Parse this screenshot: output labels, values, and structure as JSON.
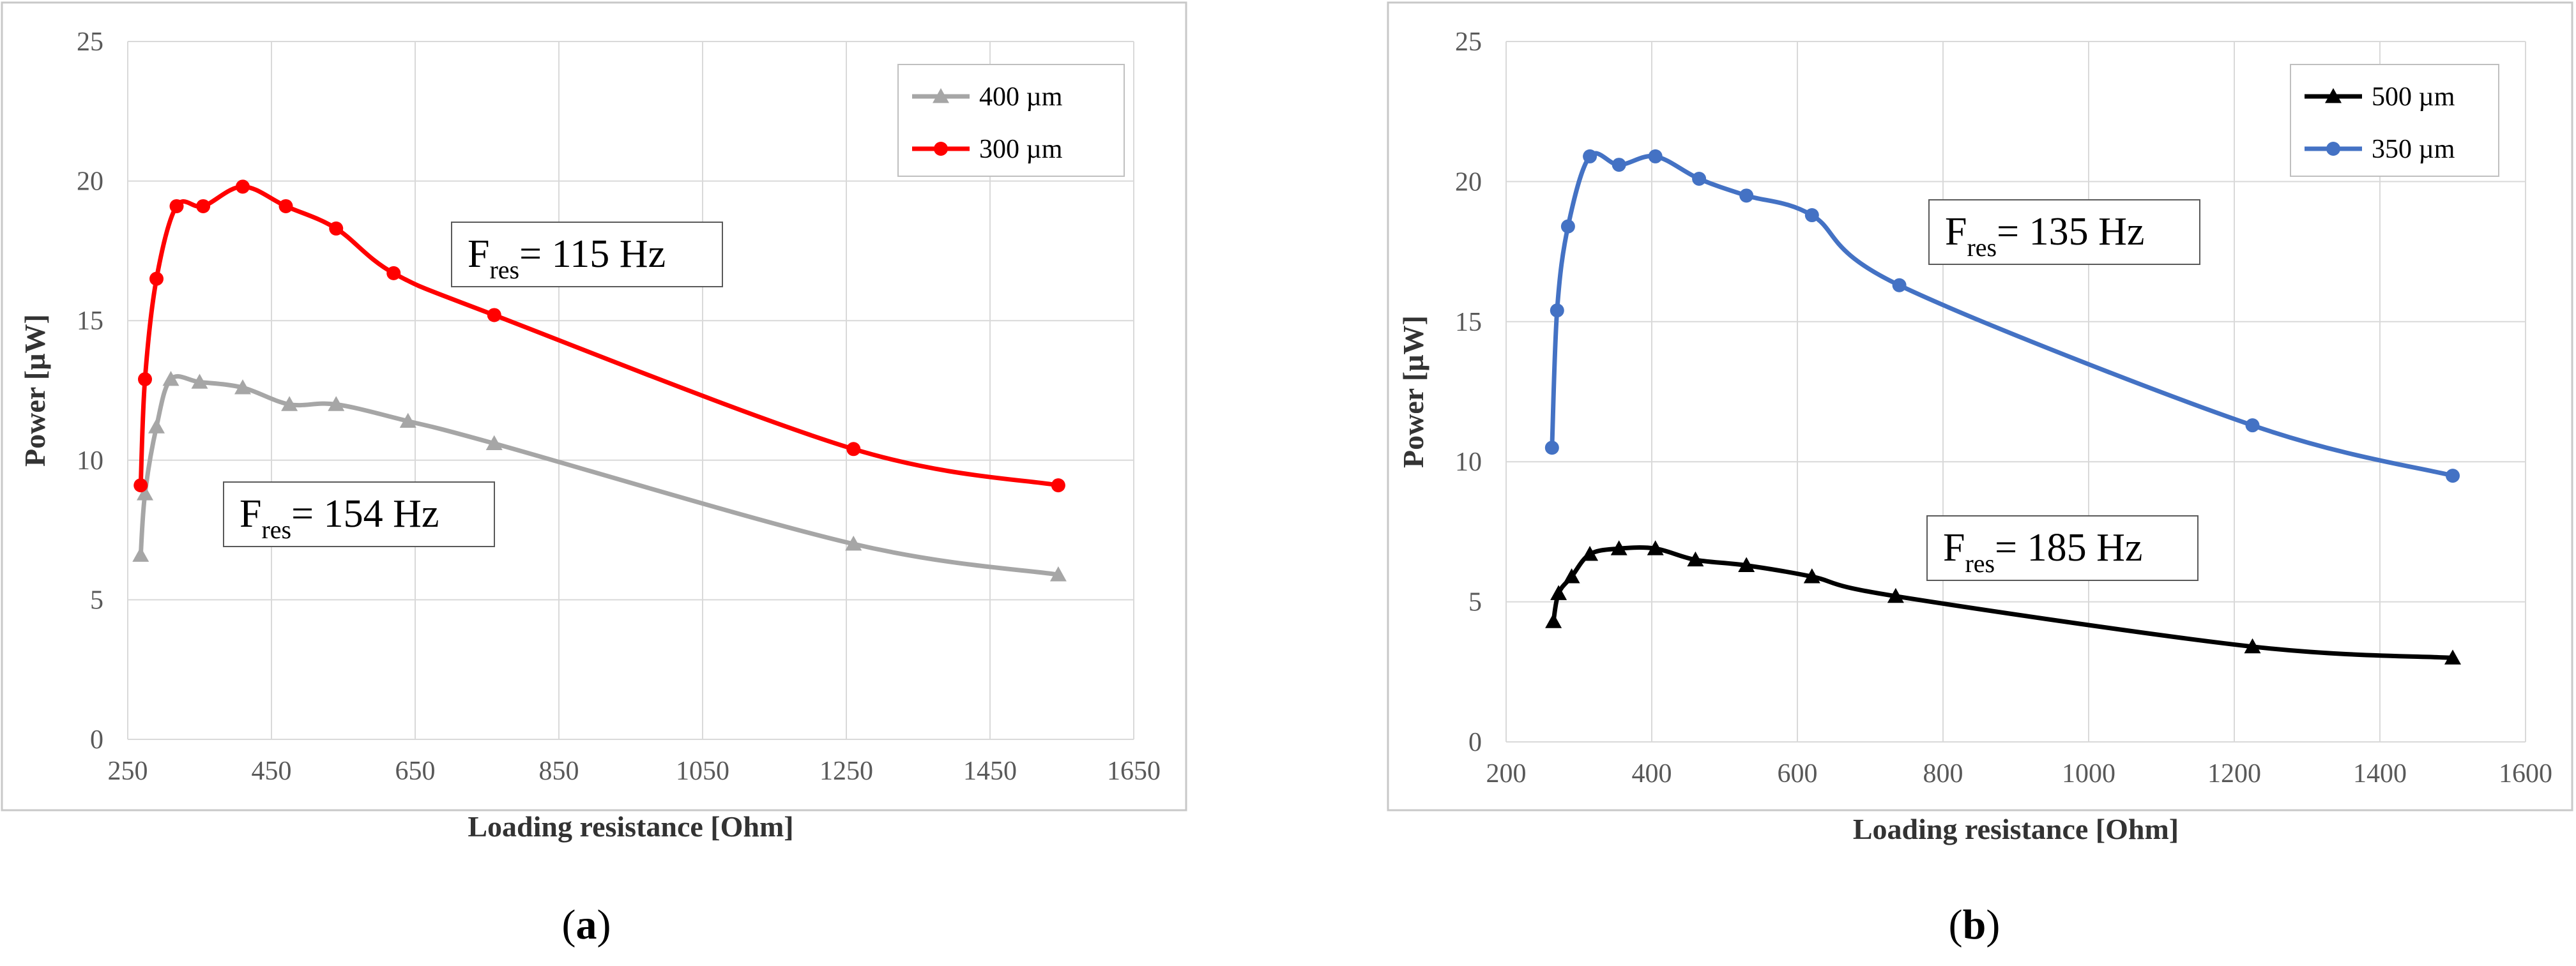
{
  "chart_data": [
    {
      "type": "line",
      "panel_label": [
        "(",
        "a",
        ")"
      ],
      "xlabel": "Loading resistance [Ohm]",
      "ylabel": "Power [µW]",
      "xlim": [
        250,
        1650
      ],
      "ylim": [
        0,
        25
      ],
      "xticks": [
        250,
        450,
        650,
        850,
        1050,
        1250,
        1450,
        1650
      ],
      "yticks": [
        0,
        5,
        10,
        15,
        20,
        25
      ],
      "grid": true,
      "legend_position": "top-right",
      "series": [
        {
          "name": "400 µm",
          "color": "#a6a6a6",
          "marker": "triangle",
          "x": [
            268,
            274,
            290,
            310,
            350,
            410,
            475,
            540,
            640,
            760,
            1260,
            1545
          ],
          "y": [
            6.6,
            8.8,
            11.2,
            12.9,
            12.8,
            12.6,
            12.0,
            12.0,
            11.4,
            10.6,
            7.0,
            5.9
          ]
        },
        {
          "name": "300 µm",
          "color": "#ff0000",
          "marker": "circle",
          "x": [
            268,
            274,
            290,
            318,
            355,
            410,
            470,
            540,
            620,
            760,
            1260,
            1545
          ],
          "y": [
            9.1,
            12.9,
            16.5,
            19.1,
            19.1,
            19.8,
            19.1,
            18.3,
            16.7,
            15.2,
            10.4,
            9.1
          ]
        }
      ],
      "annotations": [
        {
          "main": "F",
          "sub": "res",
          "text": "= 115 Hz",
          "near_series": "300 µm"
        },
        {
          "main": "F",
          "sub": "res",
          "text": "= 154 Hz",
          "near_series": "400 µm"
        }
      ]
    },
    {
      "type": "line",
      "panel_label": [
        "(",
        "b",
        ")"
      ],
      "xlabel": "Loading resistance [Ohm]",
      "ylabel": "Power [µW]",
      "xlim": [
        200,
        1600
      ],
      "ylim": [
        0,
        25
      ],
      "xticks": [
        200,
        400,
        600,
        800,
        1000,
        1200,
        1400,
        1600
      ],
      "yticks": [
        0,
        5,
        10,
        15,
        20,
        25
      ],
      "grid": true,
      "legend_position": "top-right",
      "series": [
        {
          "name": "500 µm",
          "color": "#000000",
          "marker": "triangle",
          "x": [
            265,
            272,
            290,
            315,
            355,
            405,
            460,
            530,
            620,
            735,
            1225,
            1500
          ],
          "y": [
            4.3,
            5.3,
            5.9,
            6.7,
            6.9,
            6.9,
            6.5,
            6.3,
            5.9,
            5.2,
            3.4,
            3.0
          ]
        },
        {
          "name": "350 µm",
          "color": "#4472c4",
          "marker": "circle",
          "x": [
            263,
            270,
            285,
            315,
            355,
            405,
            465,
            530,
            620,
            740,
            1225,
            1500
          ],
          "y": [
            10.5,
            15.4,
            18.4,
            20.9,
            20.6,
            20.9,
            20.1,
            19.5,
            18.8,
            16.3,
            11.3,
            9.5
          ]
        }
      ],
      "annotations": [
        {
          "main": "F",
          "sub": "res",
          "text": "= 135 Hz",
          "near_series": "350 µm"
        },
        {
          "main": "F",
          "sub": "res",
          "text": "= 185 Hz",
          "near_series": "500 µm"
        }
      ]
    }
  ]
}
